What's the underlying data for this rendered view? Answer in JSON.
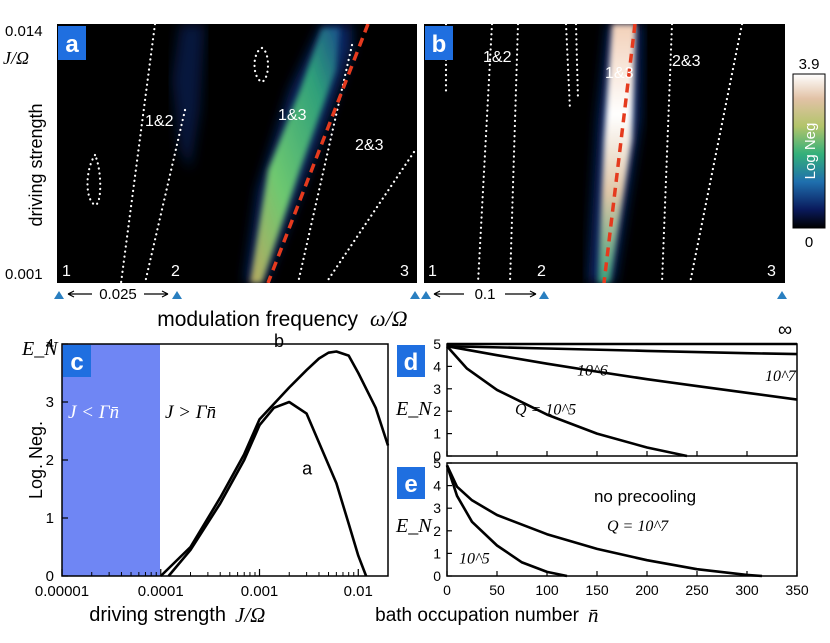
{
  "panels": {
    "a": {
      "badge": "a",
      "y_top": "0.014",
      "y_bottom": "0.001",
      "y_unit": "J/Ω",
      "ylabel": "driving strength",
      "resonance_labels": [
        "1&2",
        "1&3",
        "2&3"
      ],
      "corner_labels": [
        "1",
        "2",
        "3"
      ],
      "spacing_label": "0.025"
    },
    "b": {
      "badge": "b",
      "resonance_labels": [
        "1&2",
        "1&3",
        "2&3"
      ],
      "corner_labels": [
        "1",
        "2",
        "3"
      ],
      "spacing_label": "0.1"
    },
    "colorbar": {
      "max": "3.9",
      "min": "0",
      "label": "Log Neg"
    },
    "shared_xlabel": "modulation frequency",
    "shared_xunit": "ω/Ω"
  },
  "colors": {
    "heatmap_bg": "#000000",
    "dotted": "#ffffff",
    "dashed": "#e53a1e",
    "badge": "#1f6fe0",
    "marker": "#2a7fc0",
    "shade": "#6f86f4"
  },
  "chart_data": [
    {
      "panel": "c",
      "type": "line",
      "badge": "c",
      "ylabel": "Log. Neg.",
      "ylabel_symbol": "E_N",
      "xlabel": "driving strength",
      "xlabel_symbol": "J/Ω",
      "xscale": "log",
      "xlim": [
        1e-05,
        0.02
      ],
      "ylim": [
        0,
        4
      ],
      "xticks": [
        "0.00001",
        "0.0001",
        "0.001",
        "0.01"
      ],
      "yticks": [
        "0",
        "1",
        "2",
        "3",
        "4"
      ],
      "region_labels": [
        "J < Γn̄",
        "J > Γn̄"
      ],
      "shaded_region": [
        1e-05,
        0.0001
      ],
      "series": [
        {
          "name": "a",
          "x": [
            0.00012,
            0.0002,
            0.0004,
            0.0007,
            0.001,
            0.0014,
            0.002,
            0.003,
            0.004,
            0.006,
            0.008,
            0.01,
            0.012
          ],
          "y": [
            0,
            0.45,
            1.25,
            2.0,
            2.6,
            2.9,
            3.0,
            2.8,
            2.3,
            1.6,
            0.9,
            0.35,
            0
          ]
        },
        {
          "name": "b",
          "x": [
            0.0001,
            0.0002,
            0.0004,
            0.0007,
            0.001,
            0.002,
            0.003,
            0.004,
            0.005,
            0.006,
            0.008,
            0.01,
            0.015,
            0.02
          ],
          "y": [
            0,
            0.5,
            1.35,
            2.1,
            2.7,
            3.25,
            3.55,
            3.75,
            3.85,
            3.87,
            3.8,
            3.5,
            2.9,
            2.25
          ]
        }
      ]
    },
    {
      "panel": "d",
      "type": "line",
      "badge": "d",
      "ylabel_symbol": "E_N",
      "xlim": [
        0,
        350
      ],
      "ylim": [
        0,
        5
      ],
      "yticks": [
        "0",
        "1",
        "2",
        "3",
        "4",
        "5"
      ],
      "series": [
        {
          "name": "∞",
          "x": [
            0,
            350
          ],
          "y": [
            5,
            5
          ]
        },
        {
          "name": "10^7",
          "x": [
            0,
            100,
            200,
            300,
            350
          ],
          "y": [
            4.9,
            4.8,
            4.69,
            4.59,
            4.55
          ]
        },
        {
          "name": "10^6",
          "x": [
            0,
            50,
            100,
            150,
            200,
            250,
            300,
            350
          ],
          "y": [
            4.9,
            4.5,
            4.12,
            3.77,
            3.43,
            3.12,
            2.82,
            2.52
          ]
        },
        {
          "name": "Q = 10^5",
          "x": [
            0,
            20,
            50,
            100,
            150,
            200,
            240
          ],
          "y": [
            4.9,
            3.9,
            2.95,
            1.85,
            1.0,
            0.38,
            0
          ]
        }
      ]
    },
    {
      "panel": "e",
      "type": "line",
      "badge": "e",
      "ylabel_symbol": "E_N",
      "xlabel": "bath occupation number",
      "xlabel_symbol": "n̄",
      "annotation": "no precooling",
      "xlim": [
        0,
        350
      ],
      "ylim": [
        0,
        5
      ],
      "xticks": [
        "0",
        "50",
        "100",
        "150",
        "200",
        "250",
        "300",
        "350"
      ],
      "yticks": [
        "0",
        "1",
        "2",
        "3",
        "4",
        "5"
      ],
      "series": [
        {
          "name": "10^5",
          "x": [
            0,
            10,
            25,
            50,
            75,
            100,
            120
          ],
          "y": [
            4.9,
            3.55,
            2.4,
            1.35,
            0.6,
            0.18,
            0
          ]
        },
        {
          "name": "Q = 10^7",
          "x": [
            0,
            10,
            25,
            50,
            100,
            150,
            200,
            250,
            300,
            315
          ],
          "y": [
            4.9,
            3.95,
            3.35,
            2.7,
            1.85,
            1.2,
            0.7,
            0.3,
            0.05,
            0
          ]
        }
      ]
    }
  ]
}
